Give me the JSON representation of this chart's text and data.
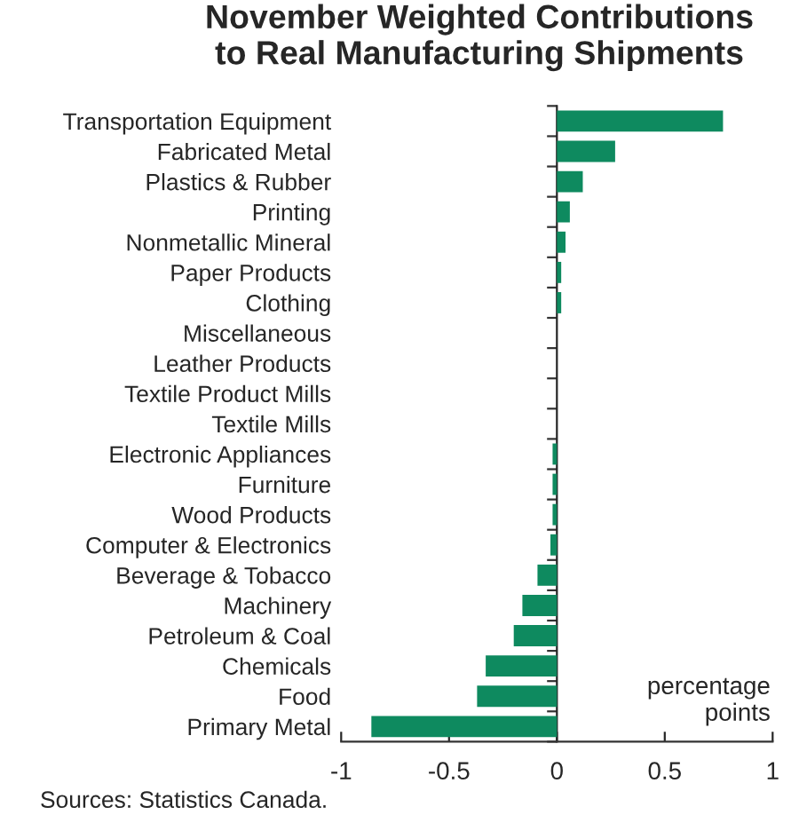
{
  "chart_data": {
    "type": "bar",
    "orientation": "horizontal",
    "title": "November Weighted Contributions\nto Real Manufacturing Shipments",
    "categories": [
      "Transportation Equipment",
      "Fabricated Metal",
      "Plastics & Rubber",
      "Printing",
      "Nonmetallic Mineral",
      "Paper Products",
      "Clothing",
      "Miscellaneous",
      "Leather Products",
      "Textile Product Mills",
      "Textile Mills",
      "Electronic Appliances",
      "Furniture",
      "Wood Products",
      "Computer & Electronics",
      "Beverage & Tobacco",
      "Machinery",
      "Petroleum & Coal",
      "Chemicals",
      "Food",
      "Primary Metal"
    ],
    "values": [
      0.77,
      0.27,
      0.12,
      0.06,
      0.04,
      0.02,
      0.02,
      0,
      0,
      0,
      0,
      -0.02,
      -0.02,
      -0.02,
      -0.03,
      -0.09,
      -0.16,
      -0.2,
      -0.33,
      -0.37,
      -0.86
    ],
    "color": "#0e8a5f",
    "xlim": [
      -1,
      1
    ],
    "xticks": [
      -1,
      -0.5,
      0,
      0.5,
      1
    ],
    "legend": false,
    "annotations": [
      "percentage\npoints",
      "Sources: Statistics Canada."
    ]
  }
}
